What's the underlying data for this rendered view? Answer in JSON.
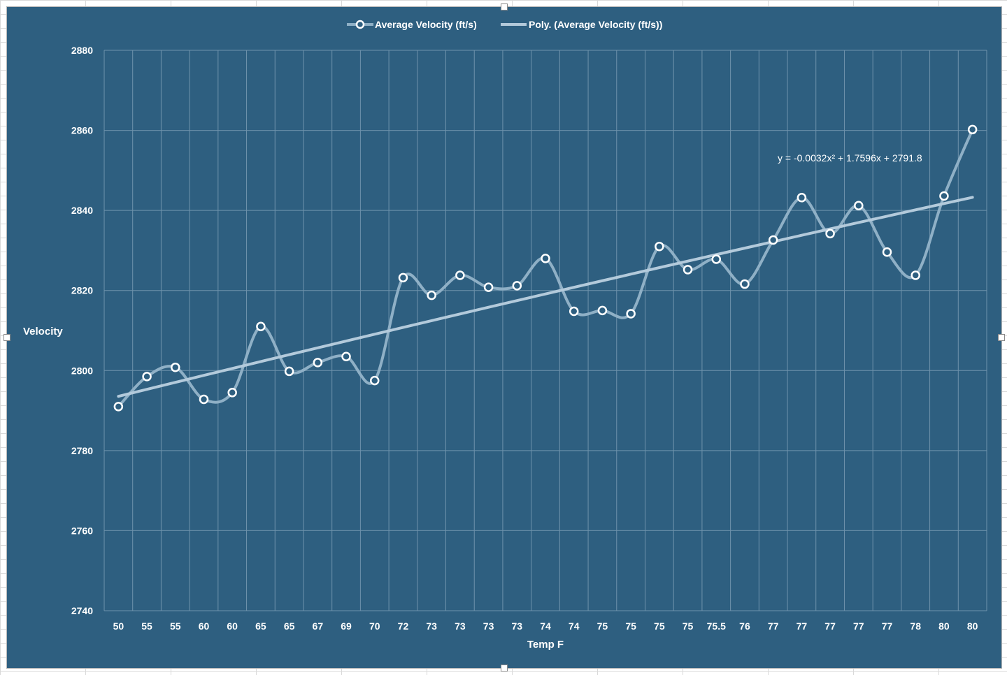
{
  "chart_data": {
    "type": "line",
    "title": "",
    "xlabel": "Temp F",
    "ylabel": "Velocity",
    "ylim": [
      2740,
      2880
    ],
    "y_ticks": [
      "2880",
      "2860",
      "2840",
      "2820",
      "2800",
      "2780",
      "2760",
      "2740"
    ],
    "categories": [
      "50",
      "55",
      "55",
      "60",
      "60",
      "65",
      "65",
      "67",
      "69",
      "70",
      "72",
      "73",
      "73",
      "73",
      "73",
      "74",
      "74",
      "75",
      "75",
      "75",
      "75",
      "75.5",
      "76",
      "77",
      "77",
      "77",
      "77",
      "77",
      "78",
      "80",
      "80"
    ],
    "series": [
      {
        "name": "Average Velocity (ft/s)",
        "values": [
          2791,
          2798.5,
          2800.8,
          2792.8,
          2794.5,
          2811,
          2799.8,
          2802,
          2803.5,
          2797.5,
          2823.2,
          2818.8,
          2823.8,
          2820.8,
          2821.2,
          2828,
          2814.8,
          2815,
          2814.2,
          2831,
          2825.2,
          2827.8,
          2821.6,
          2832.6,
          2843.2,
          2834.2,
          2841.2,
          2829.6,
          2823.8,
          2843.6,
          2860.2
        ]
      }
    ],
    "trendline": {
      "name": "Poly. (Average Velocity (ft/s))",
      "equation": "y = -0.0032x² + 1.7596x + 2791.8",
      "a": -0.0032,
      "b": 1.7596,
      "c": 2791.8
    },
    "grid": true,
    "legend_position": "top-center",
    "colors": {
      "background": "#2e5f80",
      "series": "#ffffff",
      "trend": "#a9c4d6",
      "series_line": "#8fb0c6",
      "grid": "#6f93ac"
    }
  }
}
